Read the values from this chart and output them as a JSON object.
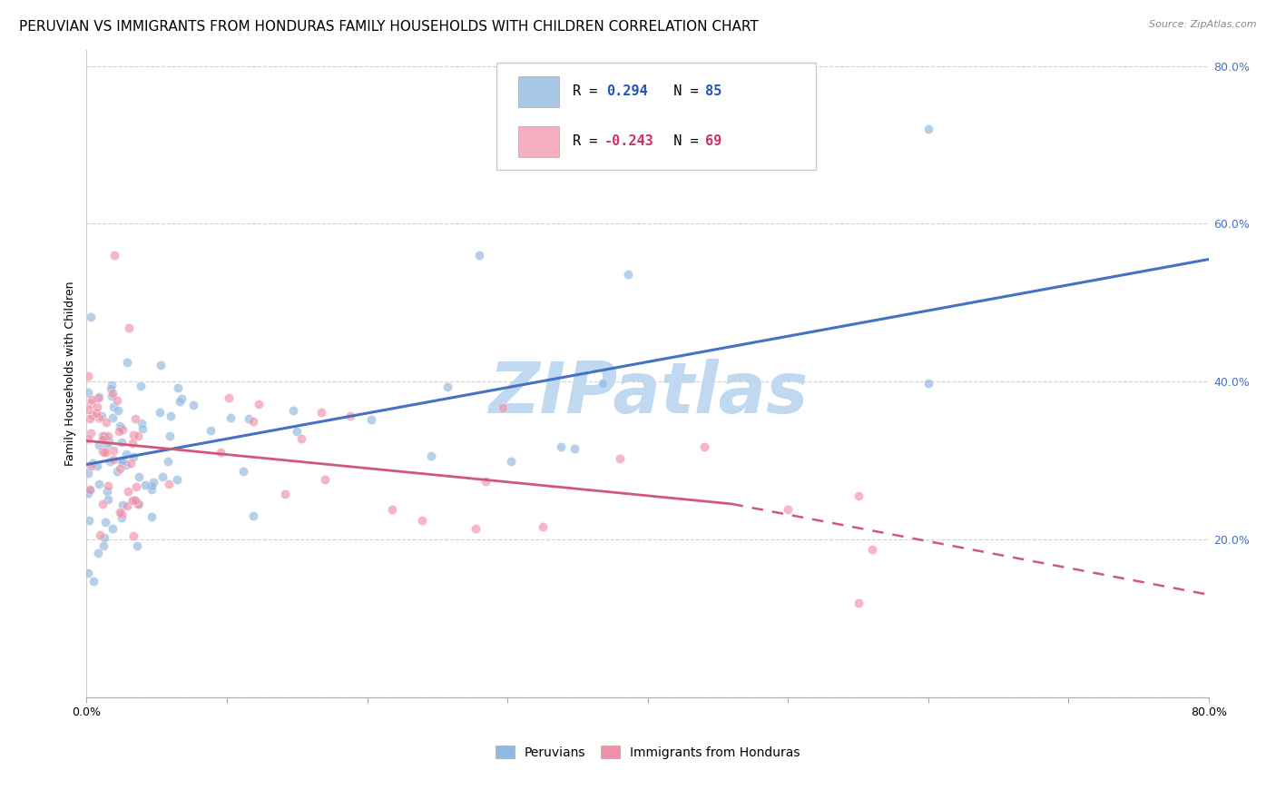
{
  "title": "PERUVIAN VS IMMIGRANTS FROM HONDURAS FAMILY HOUSEHOLDS WITH CHILDREN CORRELATION CHART",
  "source": "Source: ZipAtlas.com",
  "ylabel": "Family Households with Children",
  "xlim": [
    0.0,
    0.8
  ],
  "ylim": [
    0.0,
    0.82
  ],
  "legend_entries": [
    {
      "label_r": "R =  0.294",
      "label_n": "N = 85",
      "color": "#a8c8e8"
    },
    {
      "label_r": "R = -0.243",
      "label_n": "N = 69",
      "color": "#f4b0c0"
    }
  ],
  "peruvians": {
    "R": 0.294,
    "N": 85,
    "color": "#90b8e0",
    "line_color": "#4472c4",
    "alpha": 0.65,
    "size": 55
  },
  "honduras": {
    "R": -0.243,
    "N": 69,
    "color": "#f090a8",
    "line_color": "#d05878",
    "alpha": 0.65,
    "size": 55
  },
  "peru_line": {
    "x0": 0.0,
    "y0": 0.295,
    "x1": 0.8,
    "y1": 0.555
  },
  "hon_line_solid": {
    "x0": 0.0,
    "y0": 0.325,
    "x1": 0.46,
    "y1": 0.245
  },
  "hon_line_dash": {
    "x0": 0.46,
    "y0": 0.245,
    "x1": 0.8,
    "y1": 0.13
  },
  "watermark": "ZIPatlas",
  "watermark_color": "#c0d8f0",
  "background_color": "#ffffff",
  "grid_color": "#cccccc",
  "title_fontsize": 11,
  "axis_fontsize": 9,
  "yticks": [
    0.0,
    0.2,
    0.4,
    0.6,
    0.8
  ],
  "ytick_labels": [
    "",
    "20.0%",
    "40.0%",
    "60.0%",
    "80.0%"
  ]
}
